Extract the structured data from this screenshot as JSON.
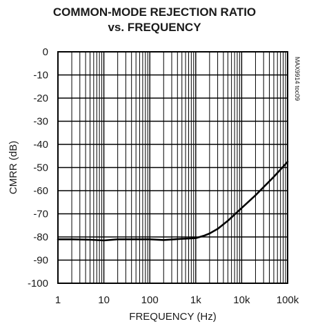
{
  "chart_data": {
    "type": "line",
    "title": "COMMON-MODE REJECTION RATIO",
    "subtitle": "vs. FREQUENCY",
    "xlabel": "FREQUENCY (Hz)",
    "ylabel": "CMRR (dB)",
    "x_scale": "log",
    "xlim": [
      1,
      100000
    ],
    "ylim": [
      -100,
      0
    ],
    "x_tick_values": [
      1,
      10,
      100,
      1000,
      10000,
      100000
    ],
    "x_tick_labels": [
      "1",
      "10",
      "100",
      "1k",
      "10k",
      "100k"
    ],
    "y_tick_values": [
      0,
      -10,
      -20,
      -30,
      -40,
      -50,
      -60,
      -70,
      -80,
      -90,
      -100
    ],
    "y_tick_labels": [
      "0",
      "-10",
      "-20",
      "-30",
      "-40",
      "-50",
      "-60",
      "-70",
      "-80",
      "-90",
      "-100"
    ],
    "grid": true,
    "side_note": "MAX9914 toc09",
    "line_color": "#000000",
    "series": [
      {
        "x": [
          1,
          2,
          5,
          10,
          20,
          50,
          100,
          200,
          500,
          1000,
          1500,
          2000,
          3000,
          5000,
          10000,
          20000,
          50000,
          100000
        ],
        "y": [
          -81,
          -81,
          -81.2,
          -81.5,
          -81,
          -81,
          -81,
          -81.3,
          -80.8,
          -80.5,
          -79.5,
          -78.5,
          -76.5,
          -73,
          -67.5,
          -62,
          -54,
          -47.5
        ]
      }
    ]
  }
}
